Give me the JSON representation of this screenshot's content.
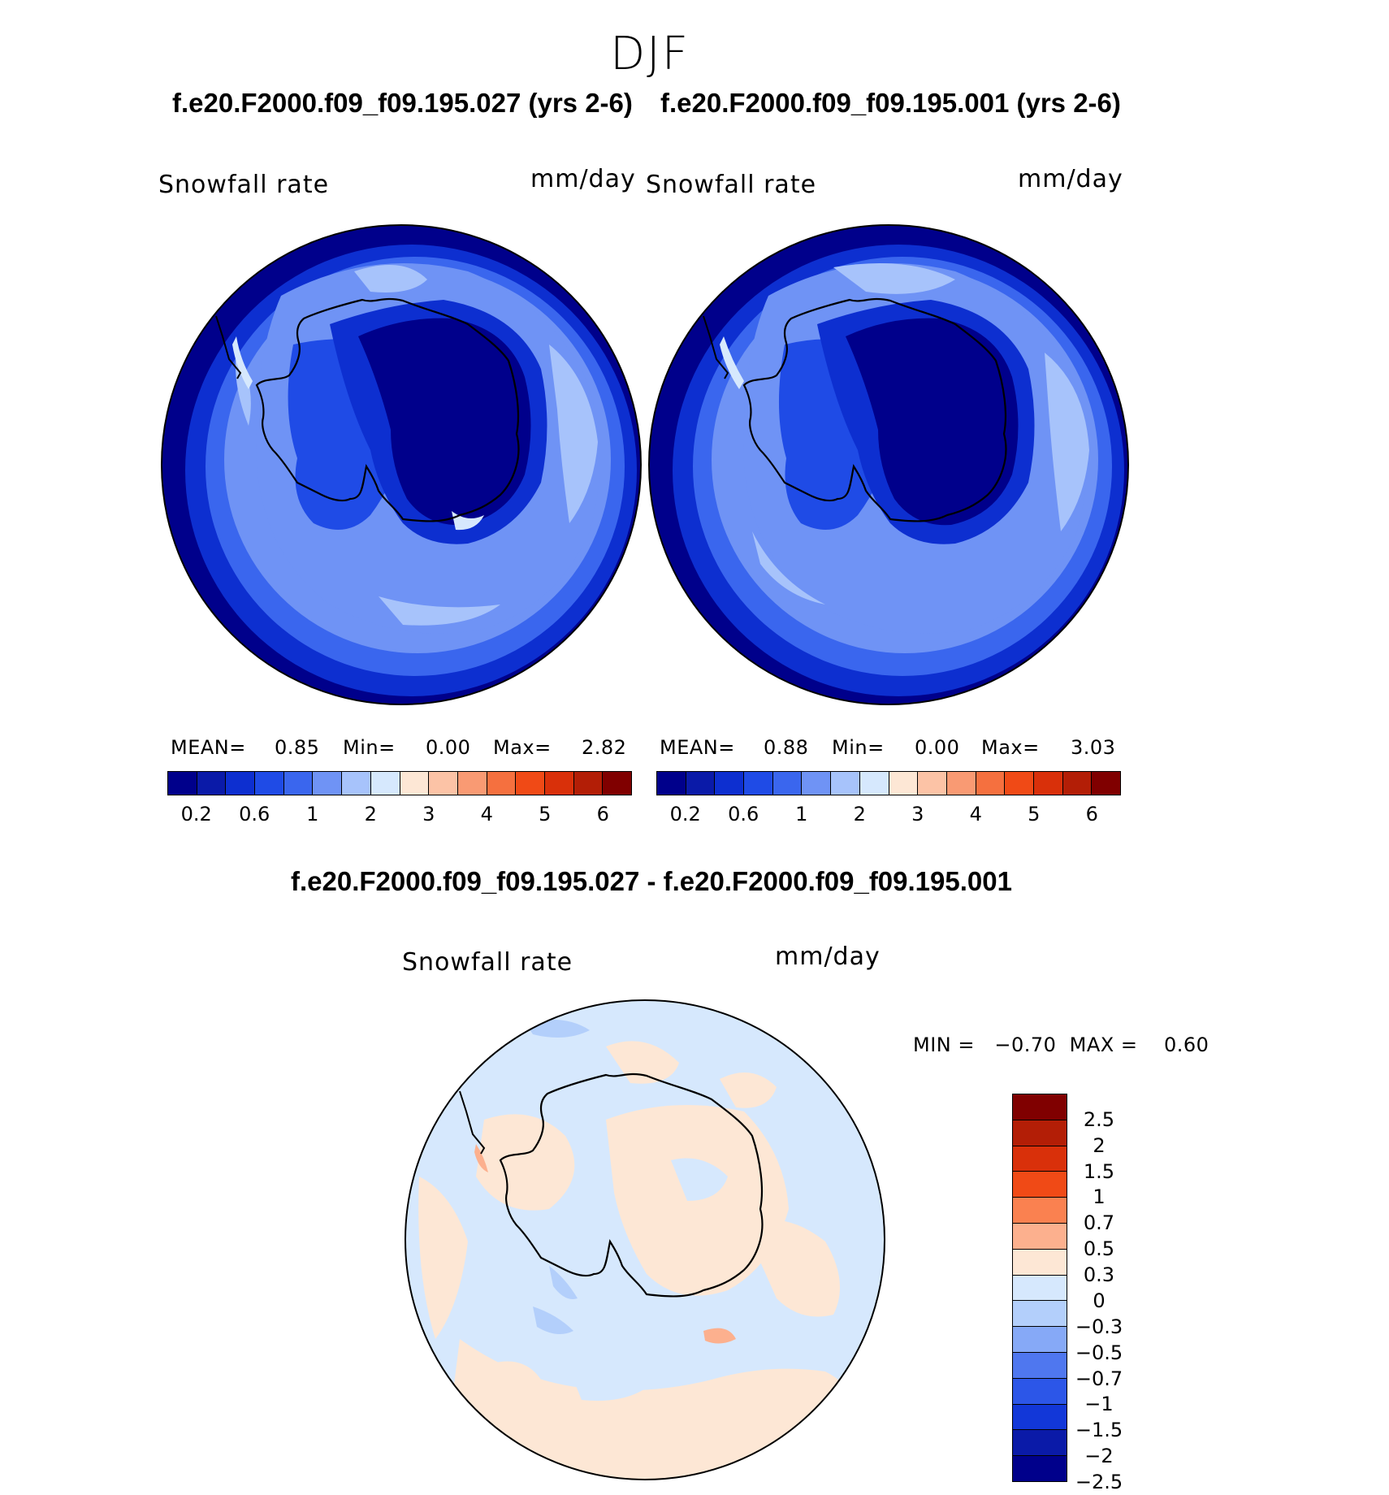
{
  "figure": {
    "season": "DJF",
    "left_panel": {
      "case_title": "f.e20.F2000.f09_f09.195.027 (yrs 2-6)",
      "variable": "Snowfall rate",
      "units": "mm/day",
      "stats": {
        "mean_label": "MEAN=",
        "mean": "0.85",
        "min_label": "Min=",
        "min": "0.00",
        "max_label": "Max=",
        "max": "2.82"
      }
    },
    "right_panel": {
      "case_title": "f.e20.F2000.f09_f09.195.001 (yrs 2-6)",
      "variable": "Snowfall rate",
      "units": "mm/day",
      "stats": {
        "mean_label": "MEAN=",
        "mean": "0.88",
        "min_label": "Min=",
        "min": "0.00",
        "max_label": "Max=",
        "max": "3.03"
      }
    },
    "diff_panel": {
      "title": "f.e20.F2000.f09_f09.195.027 - f.e20.F2000.f09_f09.195.001",
      "variable": "Snowfall rate",
      "units": "mm/day",
      "range_text": "MIN =   −0.70  MAX =    0.60"
    },
    "abs_colorbar": {
      "colors": [
        "#00008b",
        "#0a1aa8",
        "#0d2fd0",
        "#1f4be6",
        "#3a66ee",
        "#6f93f5",
        "#a7c3fb",
        "#d6e8fd",
        "#fde7d5",
        "#fcc3a6",
        "#f99a73",
        "#f5703f",
        "#f04a16",
        "#d9300a",
        "#b31e06",
        "#800000"
      ],
      "tick_labels": [
        "0.2",
        "0.6",
        "1",
        "2",
        "3",
        "4",
        "5",
        "6"
      ]
    },
    "diff_colorbar": {
      "colors": [
        "#800000",
        "#b31e06",
        "#d9300a",
        "#f04a16",
        "#fa8150",
        "#fcb08e",
        "#fde7d5",
        "#d6e8fd",
        "#b3cffb",
        "#86a9f7",
        "#4f77ef",
        "#2c56e8",
        "#1237d8",
        "#0a1aa8",
        "#00008b"
      ],
      "tick_labels": [
        "2.5",
        "2",
        "1.5",
        "1",
        "0.7",
        "0.5",
        "0.3",
        "0",
        "−0.3",
        "−0.5",
        "−0.7",
        "−1",
        "−1.5",
        "−2",
        "−2.5"
      ]
    }
  }
}
